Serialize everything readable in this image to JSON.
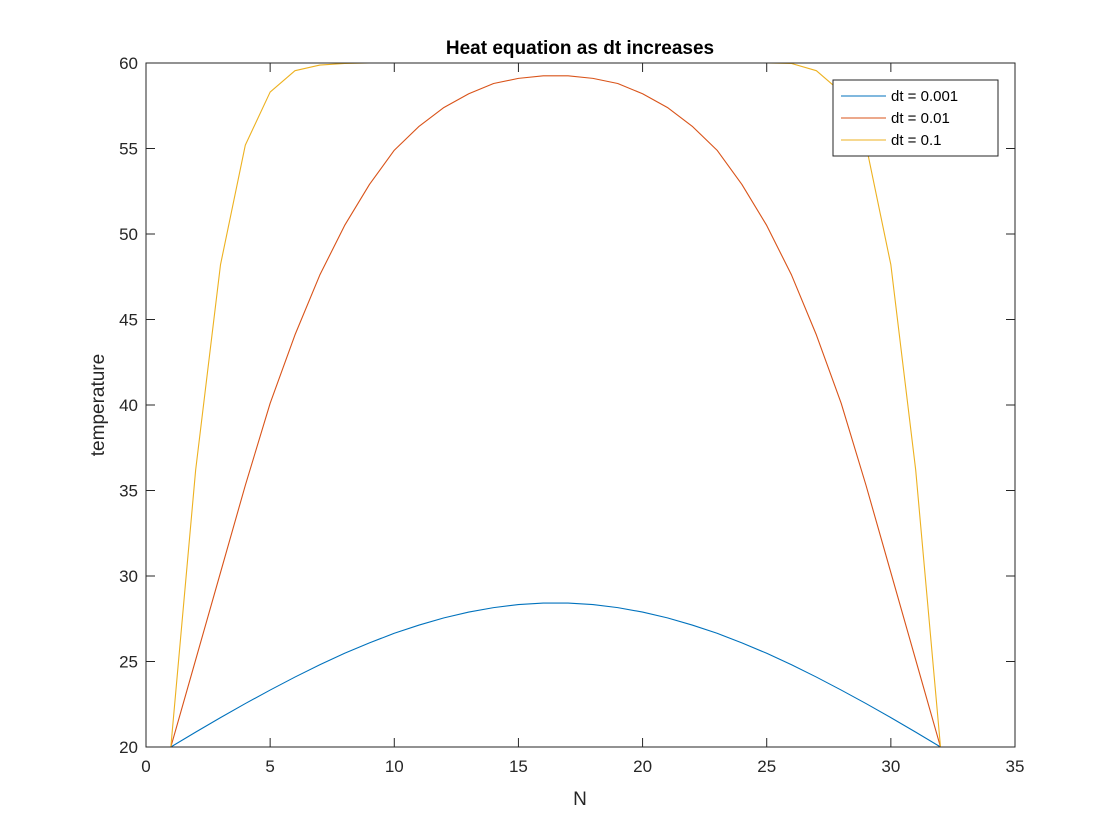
{
  "chart_data": {
    "type": "line",
    "title": "Heat equation as dt increases",
    "xlabel": "N",
    "ylabel": "temperature",
    "xlim": [
      0,
      35
    ],
    "ylim": [
      20,
      60
    ],
    "xticks": [
      0,
      5,
      10,
      15,
      20,
      25,
      30,
      35
    ],
    "yticks": [
      20,
      25,
      30,
      35,
      40,
      45,
      50,
      55,
      60
    ],
    "xtick_labels": [
      "0",
      "5",
      "10",
      "15",
      "20",
      "25",
      "30",
      "35"
    ],
    "ytick_labels": [
      "20",
      "25",
      "30",
      "35",
      "40",
      "45",
      "50",
      "55",
      "60"
    ],
    "grid": false,
    "legend_position": "top-right",
    "x": [
      1,
      2,
      3,
      4,
      5,
      6,
      7,
      8,
      9,
      10,
      11,
      12,
      13,
      14,
      15,
      16,
      17,
      18,
      19,
      20,
      21,
      22,
      23,
      24,
      25,
      26,
      27,
      28,
      29,
      30,
      31,
      32
    ],
    "series": [
      {
        "name": "dt = 0.001",
        "color": "#0072BD",
        "values": [
          20.0,
          20.87,
          21.72,
          22.54,
          23.33,
          24.09,
          24.81,
          25.48,
          26.09,
          26.65,
          27.13,
          27.55,
          27.89,
          28.15,
          28.33,
          28.42,
          28.42,
          28.33,
          28.15,
          27.89,
          27.55,
          27.13,
          26.65,
          26.09,
          25.48,
          24.81,
          24.09,
          23.33,
          22.54,
          21.72,
          20.87,
          20.0
        ]
      },
      {
        "name": "dt = 0.01",
        "color": "#D95319",
        "values": [
          20.0,
          25.1,
          30.2,
          35.3,
          40.1,
          44.1,
          47.6,
          50.5,
          52.9,
          54.9,
          56.3,
          57.4,
          58.2,
          58.8,
          59.1,
          59.25,
          59.25,
          59.1,
          58.8,
          58.2,
          57.4,
          56.3,
          54.9,
          52.9,
          50.5,
          47.6,
          44.1,
          40.1,
          35.3,
          30.2,
          25.1,
          20.0
        ]
      },
      {
        "name": "dt = 0.1",
        "color": "#EDB120",
        "values": [
          20.0,
          36.2,
          48.2,
          55.2,
          58.3,
          59.55,
          59.88,
          59.97,
          60.0,
          60.0,
          60.0,
          60.0,
          60.0,
          60.0,
          60.0,
          60.0,
          60.0,
          60.0,
          60.0,
          60.0,
          60.0,
          60.0,
          60.0,
          60.0,
          60.0,
          59.97,
          59.55,
          58.3,
          55.2,
          48.2,
          36.2,
          20.0
        ]
      }
    ]
  }
}
